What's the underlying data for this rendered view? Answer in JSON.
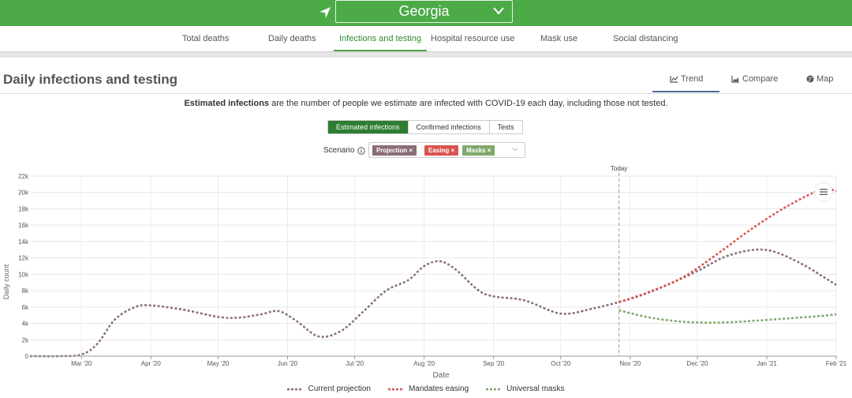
{
  "header": {
    "location": "Georgia"
  },
  "nav": {
    "tabs": [
      {
        "label": "Total deaths"
      },
      {
        "label": "Daily deaths"
      },
      {
        "label": "Infections and testing",
        "active": true
      },
      {
        "label": "Hospital resource use"
      },
      {
        "label": "Mask use"
      },
      {
        "label": "Social distancing"
      }
    ]
  },
  "section": {
    "title": "Daily infections and testing",
    "views": [
      {
        "label": "Trend",
        "icon": "line-chart-icon",
        "active": true
      },
      {
        "label": "Compare",
        "icon": "area-chart-icon"
      },
      {
        "label": "Map",
        "icon": "globe-icon"
      }
    ],
    "description_bold": "Estimated infections",
    "description_rest": " are the number of people we estimate are infected with COVID-19 each day, including those not tested."
  },
  "metrics": [
    {
      "label": "Estimated infections",
      "active": true
    },
    {
      "label": "Confirmed infections"
    },
    {
      "label": "Tests"
    }
  ],
  "scenario": {
    "label": "Scenario",
    "chips": [
      {
        "label": "Projection",
        "color": "#8a6d76"
      },
      {
        "label": "Easing",
        "color": "#d9534f"
      },
      {
        "label": "Masks",
        "color": "#7fa86b"
      }
    ]
  },
  "colors": {
    "brand": "#4caa47",
    "projection": "#8a6d76",
    "easing": "#d9534f",
    "masks": "#7fa86b"
  },
  "chart_data": {
    "type": "line",
    "xlabel": "Date",
    "ylabel": "Daily count",
    "x_ticks": [
      "Mar '20",
      "Apr '20",
      "May '20",
      "Jun '20",
      "Jul '20",
      "Aug '20",
      "Sep '20",
      "Oct '20",
      "Nov '20",
      "Dec '20",
      "Jan '21",
      "Feb '21"
    ],
    "y_ticks": [
      "0",
      "2k",
      "4k",
      "6k",
      "8k",
      "10k",
      "12k",
      "14k",
      "16k",
      "18k",
      "20k",
      "22k"
    ],
    "ylim": [
      0,
      22000
    ],
    "xlim": [
      "2020-02-07",
      "2021-02-01"
    ],
    "grid": true,
    "legend_position": "bottom",
    "annotation": {
      "label": "Today",
      "date": "2020-10-27"
    },
    "series": [
      {
        "name": "Current projection",
        "color": "#8a6d76",
        "points": [
          [
            "2020-02-07",
            0
          ],
          [
            "2020-02-20",
            0
          ],
          [
            "2020-03-01",
            200
          ],
          [
            "2020-03-08",
            1500
          ],
          [
            "2020-03-16",
            4500
          ],
          [
            "2020-03-25",
            6000
          ],
          [
            "2020-04-01",
            6200
          ],
          [
            "2020-04-15",
            5700
          ],
          [
            "2020-05-01",
            4800
          ],
          [
            "2020-05-10",
            4700
          ],
          [
            "2020-05-20",
            5100
          ],
          [
            "2020-05-28",
            5500
          ],
          [
            "2020-06-05",
            4300
          ],
          [
            "2020-06-15",
            2400
          ],
          [
            "2020-06-25",
            3100
          ],
          [
            "2020-07-05",
            5500
          ],
          [
            "2020-07-15",
            8000
          ],
          [
            "2020-07-25",
            9300
          ],
          [
            "2020-08-01",
            11000
          ],
          [
            "2020-08-08",
            11600
          ],
          [
            "2020-08-15",
            10600
          ],
          [
            "2020-08-25",
            8100
          ],
          [
            "2020-09-01",
            7300
          ],
          [
            "2020-09-15",
            6800
          ],
          [
            "2020-10-01",
            5200
          ],
          [
            "2020-10-15",
            5800
          ],
          [
            "2020-11-01",
            7000
          ],
          [
            "2020-11-15",
            8400
          ],
          [
            "2020-12-01",
            10400
          ],
          [
            "2020-12-15",
            12300
          ],
          [
            "2020-12-31",
            13000
          ],
          [
            "2021-01-15",
            11500
          ],
          [
            "2021-02-01",
            8700
          ]
        ]
      },
      {
        "name": "Mandates easing",
        "color": "#d9534f",
        "points": [
          [
            "2020-10-27",
            6600
          ],
          [
            "2020-11-10",
            7900
          ],
          [
            "2020-11-25",
            9700
          ],
          [
            "2020-12-10",
            12500
          ],
          [
            "2020-12-25",
            15500
          ],
          [
            "2021-01-10",
            18300
          ],
          [
            "2021-01-25",
            20300
          ],
          [
            "2021-02-01",
            20200
          ]
        ]
      },
      {
        "name": "Universal masks",
        "color": "#7fa86b",
        "points": [
          [
            "2020-10-27",
            5600
          ],
          [
            "2020-11-10",
            4700
          ],
          [
            "2020-11-25",
            4200
          ],
          [
            "2020-12-10",
            4100
          ],
          [
            "2020-12-25",
            4300
          ],
          [
            "2021-01-10",
            4600
          ],
          [
            "2021-01-25",
            4900
          ],
          [
            "2021-02-01",
            5100
          ]
        ]
      }
    ]
  }
}
